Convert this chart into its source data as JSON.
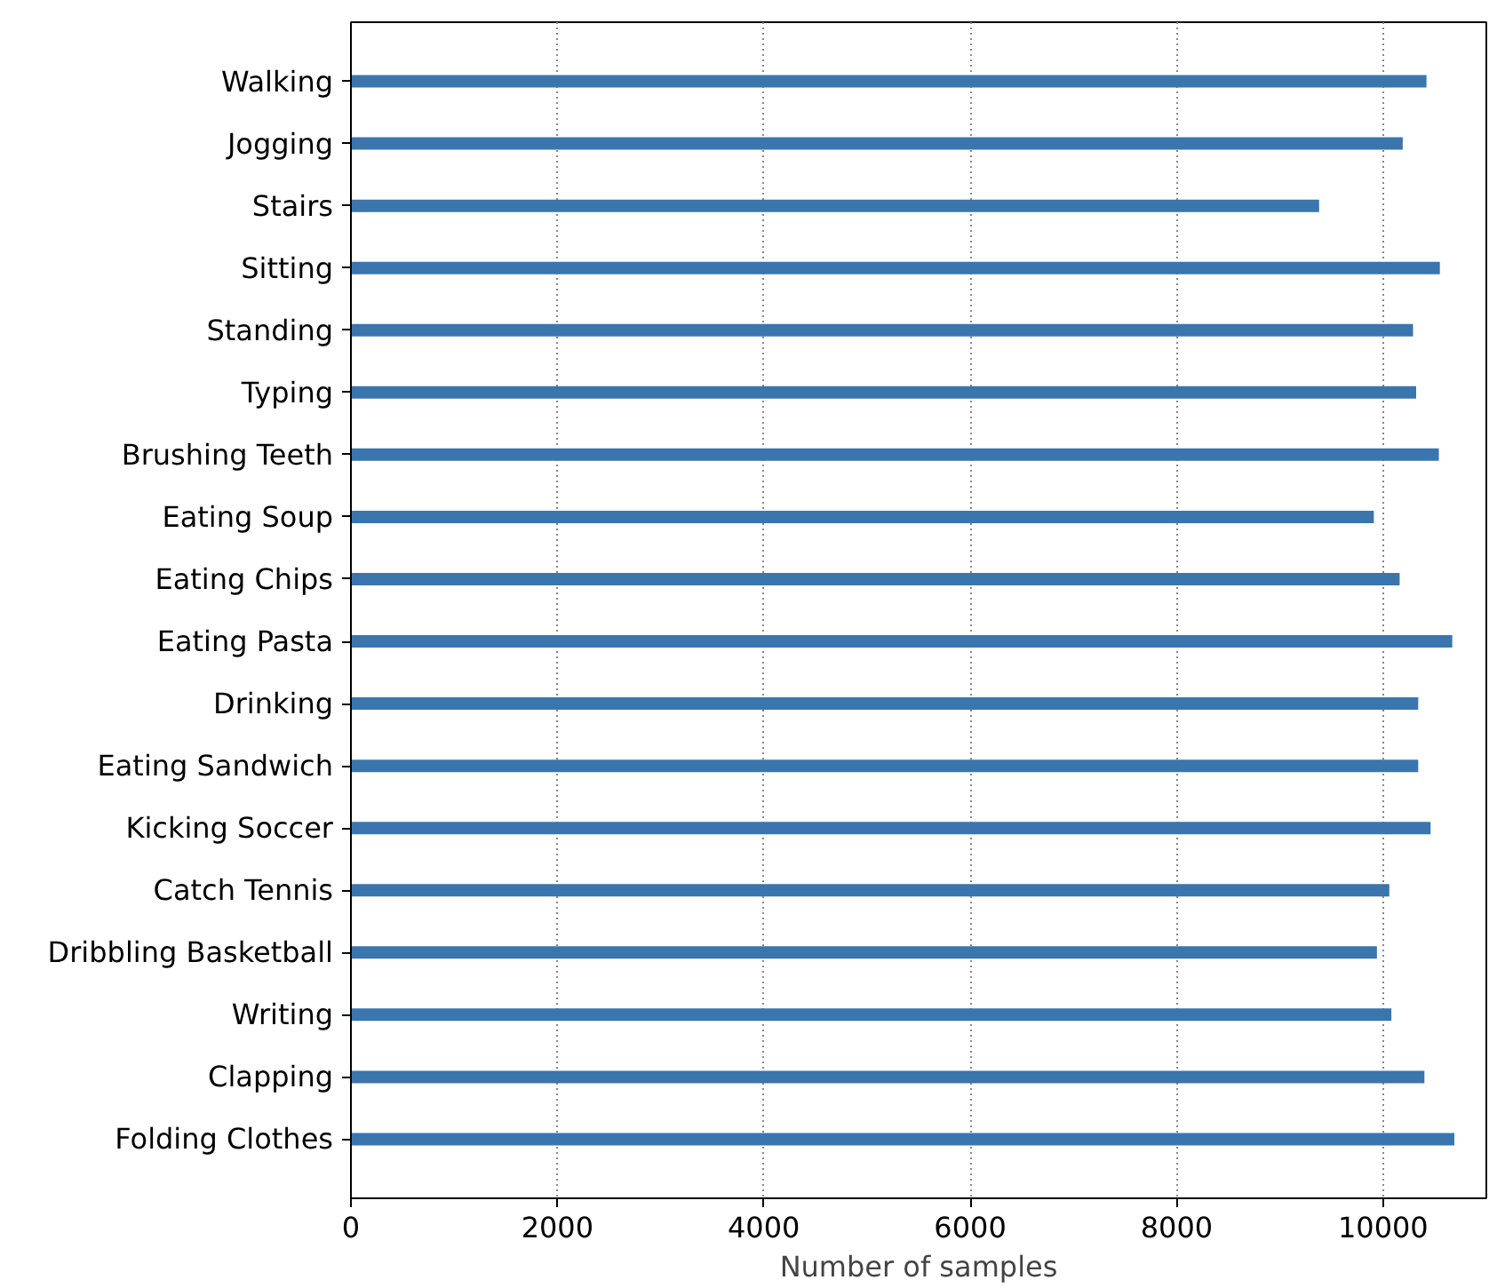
{
  "chart_data": {
    "type": "bar",
    "orientation": "horizontal",
    "xlabel": "Number of samples",
    "categories": [
      "Walking",
      "Jogging",
      "Stairs",
      "Sitting",
      "Standing",
      "Typing",
      "Brushing Teeth",
      "Eating Soup",
      "Eating Chips",
      "Eating Pasta",
      "Drinking",
      "Eating Sandwich",
      "Kicking Soccer",
      "Catch Tennis",
      "Dribbling Basketball",
      "Writing",
      "Clapping",
      "Folding Clothes"
    ],
    "values": [
      10420,
      10190,
      9380,
      10550,
      10290,
      10320,
      10540,
      9910,
      10160,
      10670,
      10340,
      10340,
      10460,
      10060,
      9940,
      10080,
      10400,
      10690
    ],
    "color": "#3a75ad",
    "xlim": [
      0,
      11000
    ],
    "xticks": [
      0,
      2000,
      4000,
      6000,
      8000,
      10000
    ],
    "grid": "x"
  }
}
